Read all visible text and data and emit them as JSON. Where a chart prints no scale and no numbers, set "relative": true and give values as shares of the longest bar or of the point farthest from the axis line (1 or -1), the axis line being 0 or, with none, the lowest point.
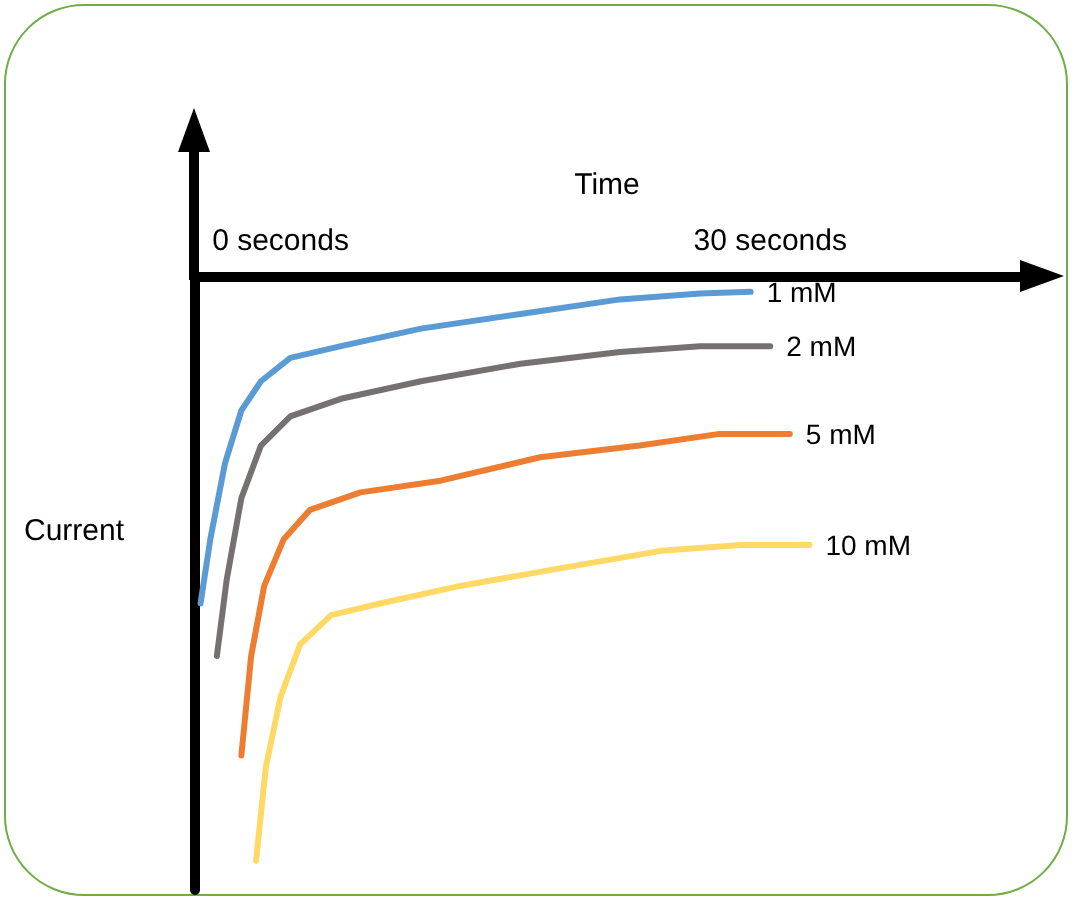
{
  "chart_data": {
    "type": "line",
    "xlabel": "Time",
    "ylabel": "Current",
    "relative": true,
    "xlim": [
      -5.3,
      45.3
    ],
    "xticks": [
      {
        "value": 0,
        "label": "0 seconds"
      },
      {
        "value": 30,
        "label": "30 seconds"
      }
    ],
    "marker": "none",
    "line_style": "solid",
    "grid": false,
    "series": [
      {
        "name": "1 mM",
        "color": "#5b9bd5",
        "x": [
          -4.9,
          -4.3,
          -3.4,
          -2.4,
          -1.2,
          0.6,
          3.7,
          8.6,
          14.7,
          20.8,
          25.7,
          28.8
        ],
        "values": [
          -0.56,
          -0.45,
          -0.32,
          -0.23,
          -0.18,
          -0.14,
          -0.12,
          -0.09,
          -0.065,
          -0.04,
          -0.03,
          -0.027
        ]
      },
      {
        "name": "2 mM",
        "color": "#767171",
        "x": [
          -3.9,
          -3.3,
          -2.4,
          -1.2,
          0.6,
          3.7,
          8.6,
          14.7,
          20.8,
          25.7,
          30.0
        ],
        "values": [
          -0.65,
          -0.52,
          -0.38,
          -0.29,
          -0.24,
          -0.21,
          -0.18,
          -0.15,
          -0.13,
          -0.12,
          -0.12
        ]
      },
      {
        "name": "5 mM",
        "color": "#ed7d31",
        "x": [
          -2.4,
          -1.8,
          -1.0,
          0.2,
          1.8,
          4.9,
          9.8,
          15.9,
          22.0,
          26.9,
          31.2
        ],
        "values": [
          -0.82,
          -0.65,
          -0.53,
          -0.45,
          -0.4,
          -0.37,
          -0.35,
          -0.31,
          -0.29,
          -0.27,
          -0.27
        ]
      },
      {
        "name": "10 mM",
        "color": "#ffd966",
        "x": [
          -1.5,
          -0.9,
          0,
          1.2,
          3.1,
          6.1,
          11.0,
          17.1,
          23.3,
          28.2,
          32.4
        ],
        "values": [
          -1,
          -0.84,
          -0.72,
          -0.63,
          -0.58,
          -0.56,
          -0.53,
          -0.5,
          -0.47,
          -0.46,
          -0.46
        ]
      }
    ]
  }
}
